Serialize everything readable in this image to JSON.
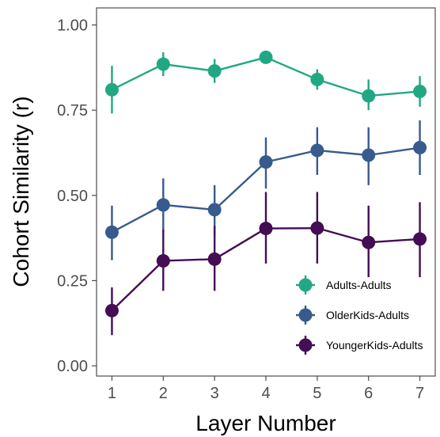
{
  "chart_data": {
    "type": "line",
    "xlabel": "Layer Number",
    "ylabel": "Cohort Similarity (r)",
    "x": [
      1,
      2,
      3,
      4,
      5,
      6,
      7
    ],
    "xlim": [
      0.7,
      7.3
    ],
    "ylim": [
      -0.03,
      1.05
    ],
    "xticks": [
      "1",
      "2",
      "3",
      "4",
      "5",
      "6",
      "7"
    ],
    "yticks": [
      {
        "value": 0.0,
        "label": "0.00"
      },
      {
        "value": 0.25,
        "label": "0.25"
      },
      {
        "value": 0.5,
        "label": "0.50"
      },
      {
        "value": 0.75,
        "label": "0.75"
      },
      {
        "value": 1.0,
        "label": "1.00"
      }
    ],
    "grid": false,
    "legend_position": "bottom-right",
    "series": [
      {
        "name": "Adults-Adults",
        "color": "#21a883",
        "values": [
          0.81,
          0.885,
          0.865,
          0.905,
          0.84,
          0.792,
          0.805
        ],
        "lower": [
          0.74,
          0.85,
          0.83,
          0.89,
          0.81,
          0.75,
          0.76
        ],
        "upper": [
          0.88,
          0.92,
          0.9,
          0.92,
          0.87,
          0.84,
          0.85
        ]
      },
      {
        "name": "OlderKids-Adults",
        "color": "#375b8c",
        "values": [
          0.392,
          0.472,
          0.458,
          0.598,
          0.632,
          0.618,
          0.64
        ],
        "lower": [
          0.31,
          0.39,
          0.38,
          0.52,
          0.56,
          0.53,
          0.56
        ],
        "upper": [
          0.47,
          0.55,
          0.53,
          0.67,
          0.7,
          0.7,
          0.72
        ]
      },
      {
        "name": "YoungerKids-Adults",
        "color": "#440d54",
        "values": [
          0.162,
          0.308,
          0.313,
          0.403,
          0.404,
          0.362,
          0.372
        ],
        "lower": [
          0.09,
          0.22,
          0.22,
          0.3,
          0.3,
          0.26,
          0.26
        ],
        "upper": [
          0.23,
          0.4,
          0.41,
          0.51,
          0.51,
          0.47,
          0.48
        ]
      }
    ]
  }
}
